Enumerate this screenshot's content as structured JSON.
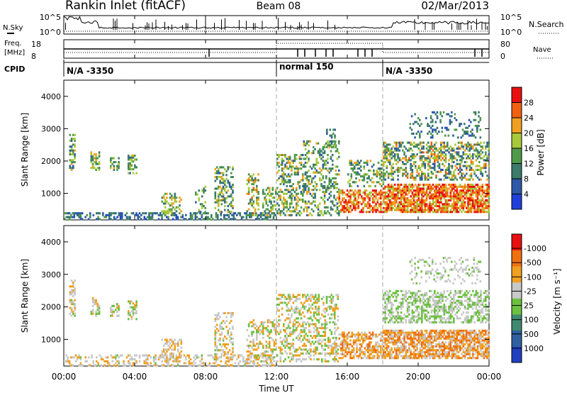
{
  "header": {
    "station": "Rankin Inlet (fitACF)",
    "beam": "Beam 08",
    "date": "02/Mar/2013"
  },
  "noise_panel": {
    "left_label": "N.Sky",
    "right_label": "N.Search",
    "left_ticks": [
      "10^5",
      "10^0"
    ],
    "right_ticks": [
      "10^5",
      "10^0"
    ]
  },
  "freq_panel": {
    "left_label_1": "Freq.",
    "left_label_2": "[MHz]",
    "right_label": "Nave",
    "left_ticks": [
      "18",
      "8"
    ],
    "right_ticks": [
      "80",
      "0"
    ]
  },
  "cpid": {
    "label": "CPID",
    "segments": [
      {
        "label": "N/A -3350",
        "start_hour": 0
      },
      {
        "label": "normal 150",
        "start_hour": 12
      },
      {
        "label": "N/A -3350",
        "start_hour": 18
      }
    ]
  },
  "chart_data": [
    {
      "type": "heatmap",
      "name": "power",
      "ylabel": "Slant Range [km]",
      "xlabel": "",
      "ylim": [
        180,
        4500
      ],
      "xlim": [
        0,
        24
      ],
      "y_ticks": [
        "1000",
        "2000",
        "3000",
        "4000"
      ],
      "colorbar": {
        "label": "Power [dB]",
        "ticks": [
          "4",
          "8",
          "12",
          "16",
          "20",
          "24",
          "28"
        ],
        "range": [
          0,
          30
        ],
        "colors": [
          "#1f3fd8",
          "#2e58a8",
          "#3c7a6a",
          "#4f9a4a",
          "#a7c83a",
          "#f0a020",
          "#f06010",
          "#e81010"
        ]
      },
      "scatter_regions": [
        {
          "x": [
            0.0,
            12.0
          ],
          "y": [
            180,
            400
          ],
          "density": 0.45,
          "value_range": [
            3,
            14
          ]
        },
        {
          "x": [
            0.3,
            0.6
          ],
          "y": [
            1700,
            2800
          ],
          "density": 0.55,
          "value_range": [
            6,
            20
          ]
        },
        {
          "x": [
            1.5,
            2.0
          ],
          "y": [
            1700,
            2300
          ],
          "density": 0.55,
          "value_range": [
            6,
            20
          ]
        },
        {
          "x": [
            2.6,
            3.1
          ],
          "y": [
            1700,
            2100
          ],
          "density": 0.55,
          "value_range": [
            6,
            20
          ]
        },
        {
          "x": [
            3.6,
            4.1
          ],
          "y": [
            1600,
            2200
          ],
          "density": 0.55,
          "value_range": [
            6,
            20
          ]
        },
        {
          "x": [
            5.5,
            6.6
          ],
          "y": [
            300,
            1000
          ],
          "density": 0.45,
          "value_range": [
            8,
            22
          ]
        },
        {
          "x": [
            7.4,
            8.0
          ],
          "y": [
            400,
            1200
          ],
          "density": 0.35,
          "value_range": [
            6,
            18
          ]
        },
        {
          "x": [
            8.5,
            9.5
          ],
          "y": [
            400,
            1800
          ],
          "density": 0.4,
          "value_range": [
            6,
            20
          ]
        },
        {
          "x": [
            10.3,
            11.0
          ],
          "y": [
            300,
            1600
          ],
          "density": 0.45,
          "value_range": [
            8,
            24
          ]
        },
        {
          "x": [
            11.2,
            12.0
          ],
          "y": [
            300,
            1200
          ],
          "density": 0.4,
          "value_range": [
            8,
            20
          ]
        },
        {
          "x": [
            12.0,
            13.5
          ],
          "y": [
            300,
            2200
          ],
          "density": 0.4,
          "value_range": [
            6,
            22
          ]
        },
        {
          "x": [
            13.5,
            15.5
          ],
          "y": [
            300,
            2600
          ],
          "density": 0.3,
          "value_range": [
            6,
            20
          ]
        },
        {
          "x": [
            14.8,
            15.3
          ],
          "y": [
            2400,
            3000
          ],
          "density": 0.35,
          "value_range": [
            6,
            16
          ]
        },
        {
          "x": [
            15.5,
            18.0
          ],
          "y": [
            400,
            1100
          ],
          "density": 0.6,
          "value_range": [
            16,
            30
          ]
        },
        {
          "x": [
            16.0,
            18.0
          ],
          "y": [
            1200,
            2000
          ],
          "density": 0.35,
          "value_range": [
            6,
            20
          ]
        },
        {
          "x": [
            18.0,
            24.0
          ],
          "y": [
            400,
            1300
          ],
          "density": 0.75,
          "value_range": [
            16,
            30
          ]
        },
        {
          "x": [
            18.0,
            24.0
          ],
          "y": [
            1400,
            2600
          ],
          "density": 0.45,
          "value_range": [
            4,
            24
          ]
        },
        {
          "x": [
            19.5,
            23.5
          ],
          "y": [
            2700,
            3500
          ],
          "density": 0.2,
          "value_range": [
            4,
            14
          ]
        }
      ]
    },
    {
      "type": "heatmap",
      "name": "velocity",
      "ylabel": "Slant Range [km]",
      "xlabel": "Time UT",
      "ylim": [
        180,
        4500
      ],
      "xlim": [
        0,
        24
      ],
      "y_ticks": [
        "1000",
        "2000",
        "3000",
        "4000"
      ],
      "x_ticks": [
        "00:00",
        "04:00",
        "08:00",
        "12:00",
        "16:00",
        "20:00",
        "00:00"
      ],
      "colorbar": {
        "label": "Velocity [m s⁻¹]",
        "ticks": [
          "1000",
          "500",
          "100",
          "25",
          "-25",
          "-100",
          "-500",
          "-1000"
        ],
        "range": [
          -1200,
          1200
        ],
        "colors": [
          "#2040c0",
          "#3060a0",
          "#3f8a70",
          "#6cc040",
          "#c8c8c8",
          "#f0a020",
          "#f07010",
          "#e81010"
        ]
      },
      "scatter_regions": [
        {
          "x": [
            0.0,
            12.0
          ],
          "y": [
            180,
            500
          ],
          "density": 0.35,
          "value_range": [
            -500,
            25
          ]
        },
        {
          "x": [
            0.3,
            0.6
          ],
          "y": [
            1700,
            2800
          ],
          "density": 0.55,
          "value_range": [
            -400,
            100
          ]
        },
        {
          "x": [
            1.5,
            2.0
          ],
          "y": [
            1700,
            2300
          ],
          "density": 0.55,
          "value_range": [
            -400,
            200
          ]
        },
        {
          "x": [
            2.6,
            3.1
          ],
          "y": [
            1700,
            2100
          ],
          "density": 0.55,
          "value_range": [
            -400,
            200
          ]
        },
        {
          "x": [
            3.6,
            4.1
          ],
          "y": [
            1600,
            2200
          ],
          "density": 0.55,
          "value_range": [
            -400,
            200
          ]
        },
        {
          "x": [
            5.5,
            6.6
          ],
          "y": [
            300,
            1000
          ],
          "density": 0.45,
          "value_range": [
            -500,
            0
          ]
        },
        {
          "x": [
            8.5,
            9.5
          ],
          "y": [
            400,
            1800
          ],
          "density": 0.4,
          "value_range": [
            -500,
            100
          ]
        },
        {
          "x": [
            10.3,
            12.0
          ],
          "y": [
            300,
            1600
          ],
          "density": 0.4,
          "value_range": [
            -600,
            200
          ]
        },
        {
          "x": [
            12.0,
            15.5
          ],
          "y": [
            300,
            2400
          ],
          "density": 0.35,
          "value_range": [
            -600,
            300
          ]
        },
        {
          "x": [
            15.5,
            18.0
          ],
          "y": [
            400,
            1200
          ],
          "density": 0.55,
          "value_range": [
            -800,
            -50
          ]
        },
        {
          "x": [
            18.0,
            24.0
          ],
          "y": [
            400,
            1300
          ],
          "density": 0.75,
          "value_range": [
            -900,
            -50
          ]
        },
        {
          "x": [
            18.0,
            24.0
          ],
          "y": [
            1500,
            2500
          ],
          "density": 0.5,
          "value_range": [
            -40,
            40
          ]
        },
        {
          "x": [
            19.5,
            23.5
          ],
          "y": [
            2700,
            3500
          ],
          "density": 0.2,
          "value_range": [
            -300,
            100
          ]
        }
      ]
    }
  ]
}
